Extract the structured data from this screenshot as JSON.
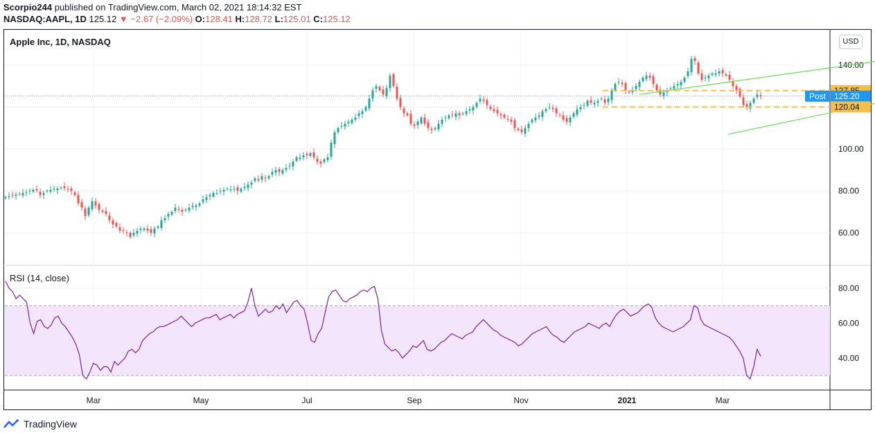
{
  "header": {
    "author": "Scorpio244",
    "published": "published on TradingView.com, March 02, 2021 18:14:32 EST",
    "symbol": "NASDAQ:AAPL, 1D",
    "last": "125.12",
    "change_arrow": "▼",
    "change": "−2.67 (−2.09%)",
    "o_label": "O:",
    "o": "128.41",
    "h_label": "H:",
    "h": "128.72",
    "l_label": "L:",
    "l": "125.01",
    "c_label": "C:",
    "c": "125.12"
  },
  "chart_title": "Apple Inc, 1D, NASDAQ",
  "currency_button": "USD",
  "rsi_title": "RSI (14, close)",
  "brand": "TradingView",
  "colors": {
    "up": "#26a69a",
    "down": "#ef5350",
    "channel": "#66dd55",
    "level": "#f5c04a",
    "rsi": "#7b1fa2",
    "rsi_band": "#f3e5fc",
    "post": "#2196f3"
  },
  "chart_data": [
    {
      "type": "candlestick",
      "title": "Apple Inc, 1D, NASDAQ",
      "ylim": [
        48,
        152
      ],
      "yticks": [
        "140.00",
        "100.00",
        "80.00",
        "60.00"
      ],
      "xticks": [
        "Mar",
        "May",
        "Jul",
        "Sep",
        "Nov",
        "2021",
        "Mar"
      ],
      "price_labels": [
        {
          "label": "127.85",
          "value": 127.85,
          "style": "level"
        },
        {
          "label": "Post",
          "value": 125.2,
          "style": "post"
        },
        {
          "label": "125.20",
          "value": 125.2,
          "style": "post"
        },
        {
          "label": "120.04",
          "value": 120.04,
          "style": "level"
        }
      ],
      "horizontal_levels": [
        127.85,
        120.04
      ],
      "price_line": 125.2,
      "channel_lines": [
        {
          "from": [
            "2020-09-23",
            126
          ],
          "to": [
            "2021-02-27",
            151
          ]
        },
        {
          "from": [
            "2020-10-30",
            107
          ],
          "to": [
            "2021-02-24",
            135
          ]
        }
      ],
      "closes": [
        77,
        77.5,
        78,
        78.3,
        78.5,
        79,
        79.3,
        80,
        80.5,
        80.3,
        78,
        79,
        80,
        80.5,
        81,
        81.2,
        81.5,
        81.3,
        80.8,
        80,
        78,
        74,
        72,
        68,
        72,
        75,
        73,
        71,
        70,
        69,
        66,
        64,
        63,
        61,
        61,
        60,
        58,
        60,
        61,
        62,
        62,
        61,
        60,
        62,
        63,
        66,
        67,
        69,
        70,
        72,
        71,
        70,
        71,
        72,
        73,
        73,
        74,
        76,
        77,
        78,
        79,
        79,
        80,
        80.5,
        81,
        80.7,
        81,
        80,
        81,
        82,
        83,
        84,
        86,
        85,
        87,
        86,
        87,
        89,
        90,
        89,
        90,
        91,
        92,
        94,
        96,
        96,
        97,
        97,
        98,
        96,
        94,
        93,
        95,
        96,
        103,
        108,
        110,
        111,
        112,
        113,
        114,
        115,
        117,
        118,
        120,
        124,
        128,
        130,
        128,
        126,
        129,
        135,
        130,
        124,
        120,
        117,
        116,
        112,
        111,
        113,
        115,
        112,
        110,
        109,
        110,
        112,
        114,
        115,
        116,
        116,
        117,
        116,
        117,
        118,
        119,
        120,
        122,
        124,
        123,
        121,
        119,
        118,
        117,
        116,
        115,
        114,
        113,
        110,
        109,
        108,
        110,
        112,
        114,
        115,
        116,
        118,
        119,
        120,
        119,
        117,
        116,
        114,
        113,
        115,
        117,
        119,
        120,
        121,
        123,
        122,
        122,
        123,
        124,
        122,
        124,
        128,
        131,
        132,
        131,
        128,
        127,
        128,
        130,
        132,
        134,
        135,
        134,
        131,
        128,
        126,
        127,
        128,
        129,
        130,
        131,
        132,
        134,
        137,
        143,
        142,
        136,
        133,
        134,
        135,
        136,
        136,
        137,
        136,
        135,
        133,
        130,
        128,
        125,
        121,
        120,
        122,
        124,
        126,
        125.12
      ]
    },
    {
      "type": "line",
      "title": "RSI (14, close)",
      "ylim": [
        27,
        86
      ],
      "yticks": [
        "80.00",
        "60.00",
        "40.00"
      ],
      "bands": [
        30,
        70
      ],
      "values": [
        84,
        80,
        78,
        74,
        76,
        74,
        72,
        60,
        54,
        61,
        62,
        58,
        57,
        59,
        63,
        64,
        60,
        58,
        55,
        52,
        48,
        42,
        30,
        28,
        32,
        37,
        36,
        33,
        35,
        35,
        32,
        38,
        36,
        38,
        40,
        44,
        45,
        43,
        45,
        50,
        52,
        54,
        55,
        57,
        58,
        58,
        59,
        60,
        61,
        62,
        64,
        62,
        60,
        58,
        60,
        61,
        62,
        63,
        63,
        64,
        65,
        62,
        63,
        64,
        65,
        63,
        65,
        66,
        67,
        72,
        80,
        70,
        64,
        66,
        68,
        66,
        67,
        70,
        68,
        71,
        66,
        69,
        72,
        73,
        70,
        68,
        60,
        50,
        49,
        54,
        57,
        66,
        75,
        78,
        79,
        76,
        73,
        72,
        74,
        75,
        76,
        78,
        79,
        78,
        80,
        81,
        74,
        56,
        48,
        46,
        44,
        45,
        43,
        40,
        42,
        44,
        47,
        46,
        48,
        50,
        45,
        44,
        45,
        47,
        49,
        50,
        52,
        54,
        53,
        52,
        51,
        53,
        54,
        55,
        58,
        60,
        62,
        60,
        58,
        56,
        55,
        53,
        52,
        51,
        50,
        49,
        47,
        48,
        50,
        52,
        54,
        55,
        56,
        57,
        58,
        55,
        53,
        52,
        50,
        49,
        51,
        53,
        55,
        56,
        57,
        58,
        60,
        59,
        58,
        57,
        59,
        60,
        58,
        62,
        65,
        67,
        68,
        66,
        64,
        65,
        66,
        68,
        70,
        71,
        69,
        63,
        60,
        58,
        57,
        56,
        55,
        56,
        57,
        58,
        60,
        62,
        70,
        69,
        62,
        59,
        58,
        57,
        56,
        55,
        54,
        53,
        52,
        50,
        47,
        44,
        40,
        30,
        28,
        35,
        45,
        41
      ]
    }
  ]
}
